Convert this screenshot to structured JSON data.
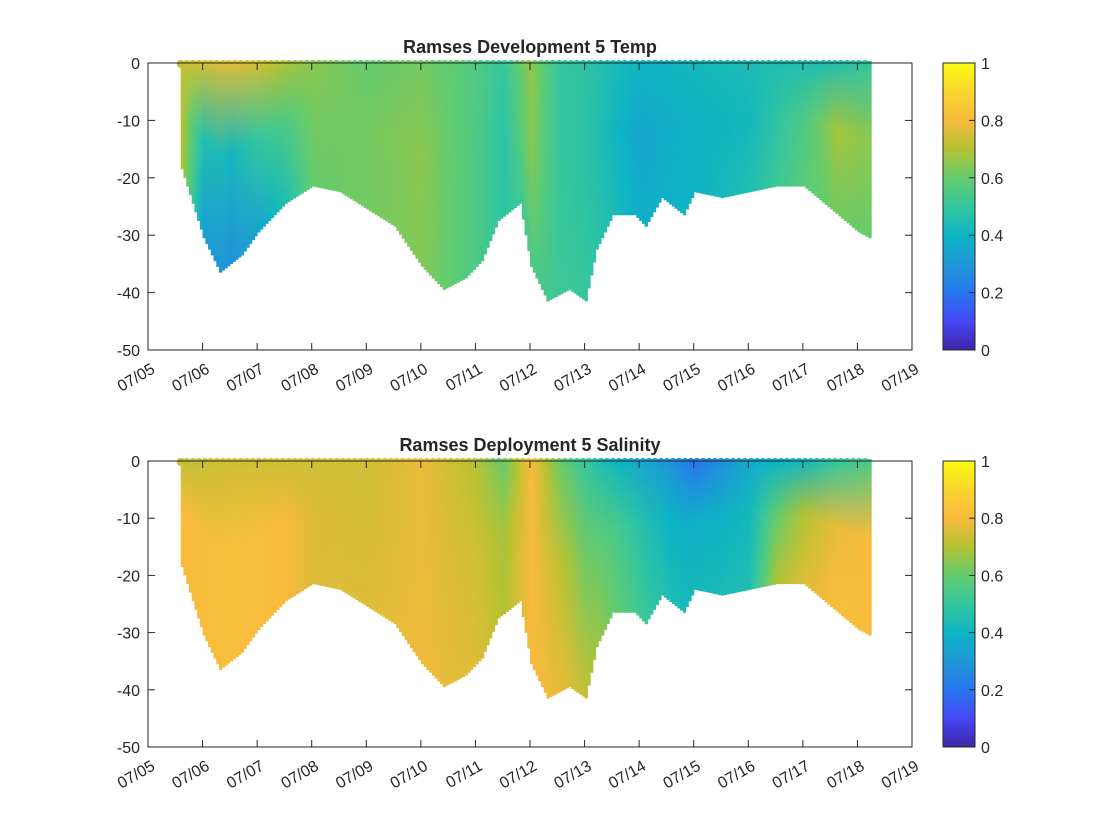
{
  "chart_data": [
    {
      "type": "heatmap",
      "title": "Ramses Development 5 Temp",
      "xlabel": "",
      "ylabel": "",
      "x_tick_labels": [
        "07/05",
        "07/06",
        "07/07",
        "07/08",
        "07/09",
        "07/10",
        "07/11",
        "07/12",
        "07/13",
        "07/14",
        "07/15",
        "07/16",
        "07/17",
        "07/18",
        "07/19"
      ],
      "x_range_days": [
        5,
        19
      ],
      "ylim": [
        -50,
        0
      ],
      "y_ticks": [
        0,
        -10,
        -20,
        -30,
        -40,
        -50
      ],
      "grid": false,
      "colormap": "parula",
      "colorbar": {
        "ticks": [
          0,
          0.2,
          0.4,
          0.6,
          0.8,
          1
        ],
        "range": [
          0,
          1
        ]
      },
      "depth_profile": [
        [
          5.6,
          -18
        ],
        [
          6.0,
          -30
        ],
        [
          6.3,
          -36
        ],
        [
          6.7,
          -33
        ],
        [
          7.0,
          -29
        ],
        [
          7.5,
          -24
        ],
        [
          8.0,
          -21
        ],
        [
          8.5,
          -22
        ],
        [
          9.0,
          -25
        ],
        [
          9.5,
          -28
        ],
        [
          10.0,
          -35
        ],
        [
          10.4,
          -39
        ],
        [
          10.8,
          -37
        ],
        [
          11.1,
          -34
        ],
        [
          11.4,
          -27
        ],
        [
          11.8,
          -24
        ],
        [
          12.0,
          -35
        ],
        [
          12.3,
          -41
        ],
        [
          12.7,
          -39
        ],
        [
          13.0,
          -41
        ],
        [
          13.2,
          -32
        ],
        [
          13.5,
          -26
        ],
        [
          13.9,
          -26
        ],
        [
          14.1,
          -28
        ],
        [
          14.4,
          -23
        ],
        [
          14.8,
          -26
        ],
        [
          15.0,
          -22
        ],
        [
          15.5,
          -23
        ],
        [
          16.0,
          -22
        ],
        [
          16.5,
          -21
        ],
        [
          17.0,
          -21
        ],
        [
          17.5,
          -25
        ],
        [
          18.0,
          -29
        ],
        [
          18.2,
          -30
        ]
      ],
      "values_at_time": [
        {
          "t": 5.6,
          "surface": 0.72,
          "mid": 0.7,
          "deep": 0.7
        },
        {
          "t": 6.0,
          "surface": 0.74,
          "mid": 0.45,
          "deep": 0.32
        },
        {
          "t": 6.5,
          "surface": 0.76,
          "mid": 0.42,
          "deep": 0.28
        },
        {
          "t": 7.0,
          "surface": 0.74,
          "mid": 0.5,
          "deep": 0.35
        },
        {
          "t": 7.5,
          "surface": 0.68,
          "mid": 0.55,
          "deep": 0.45
        },
        {
          "t": 8.0,
          "surface": 0.65,
          "mid": 0.62,
          "deep": 0.6
        },
        {
          "t": 9.0,
          "surface": 0.6,
          "mid": 0.62,
          "deep": 0.62
        },
        {
          "t": 10.0,
          "surface": 0.62,
          "mid": 0.65,
          "deep": 0.64
        },
        {
          "t": 11.0,
          "surface": 0.56,
          "mid": 0.55,
          "deep": 0.55
        },
        {
          "t": 11.5,
          "surface": 0.5,
          "mid": 0.48,
          "deep": 0.48
        },
        {
          "t": 12.0,
          "surface": 0.66,
          "mid": 0.64,
          "deep": 0.55
        },
        {
          "t": 12.5,
          "surface": 0.5,
          "mid": 0.5,
          "deep": 0.52
        },
        {
          "t": 13.0,
          "surface": 0.48,
          "mid": 0.48,
          "deep": 0.5
        },
        {
          "t": 14.0,
          "surface": 0.4,
          "mid": 0.35,
          "deep": 0.38
        },
        {
          "t": 15.0,
          "surface": 0.42,
          "mid": 0.4,
          "deep": 0.4
        },
        {
          "t": 16.0,
          "surface": 0.44,
          "mid": 0.42,
          "deep": 0.45
        },
        {
          "t": 17.0,
          "surface": 0.45,
          "mid": 0.55,
          "deep": 0.58
        },
        {
          "t": 17.6,
          "surface": 0.46,
          "mid": 0.68,
          "deep": 0.62
        },
        {
          "t": 18.2,
          "surface": 0.5,
          "mid": 0.65,
          "deep": 0.6
        }
      ]
    },
    {
      "type": "heatmap",
      "title": "Ramses Deployment 5 Salinity",
      "xlabel": "",
      "ylabel": "",
      "x_tick_labels": [
        "07/05",
        "07/06",
        "07/07",
        "07/08",
        "07/09",
        "07/10",
        "07/11",
        "07/12",
        "07/13",
        "07/14",
        "07/15",
        "07/16",
        "07/17",
        "07/18",
        "07/19"
      ],
      "x_range_days": [
        5,
        19
      ],
      "ylim": [
        -50,
        0
      ],
      "y_ticks": [
        0,
        -10,
        -20,
        -30,
        -40,
        -50
      ],
      "grid": false,
      "colormap": "parula",
      "colorbar": {
        "ticks": [
          0,
          0.2,
          0.4,
          0.6,
          0.8,
          1
        ],
        "range": [
          0,
          1
        ]
      },
      "depth_profile": [
        [
          5.6,
          -18
        ],
        [
          6.0,
          -30
        ],
        [
          6.3,
          -36
        ],
        [
          6.7,
          -33
        ],
        [
          7.0,
          -29
        ],
        [
          7.5,
          -24
        ],
        [
          8.0,
          -21
        ],
        [
          8.5,
          -22
        ],
        [
          9.0,
          -25
        ],
        [
          9.5,
          -28
        ],
        [
          10.0,
          -35
        ],
        [
          10.4,
          -39
        ],
        [
          10.8,
          -37
        ],
        [
          11.1,
          -34
        ],
        [
          11.4,
          -27
        ],
        [
          11.8,
          -24
        ],
        [
          12.0,
          -35
        ],
        [
          12.3,
          -41
        ],
        [
          12.7,
          -39
        ],
        [
          13.0,
          -41
        ],
        [
          13.2,
          -32
        ],
        [
          13.5,
          -26
        ],
        [
          13.9,
          -26
        ],
        [
          14.1,
          -28
        ],
        [
          14.4,
          -23
        ],
        [
          14.8,
          -26
        ],
        [
          15.0,
          -22
        ],
        [
          15.5,
          -23
        ],
        [
          16.0,
          -22
        ],
        [
          16.5,
          -21
        ],
        [
          17.0,
          -21
        ],
        [
          17.5,
          -25
        ],
        [
          18.0,
          -29
        ],
        [
          18.2,
          -30
        ]
      ],
      "values_at_time": [
        {
          "t": 5.6,
          "surface": 0.72,
          "mid": 0.8,
          "deep": 0.8
        },
        {
          "t": 6.5,
          "surface": 0.74,
          "mid": 0.82,
          "deep": 0.82
        },
        {
          "t": 7.5,
          "surface": 0.74,
          "mid": 0.8,
          "deep": 0.8
        },
        {
          "t": 8.0,
          "surface": 0.74,
          "mid": 0.76,
          "deep": 0.76
        },
        {
          "t": 9.0,
          "surface": 0.74,
          "mid": 0.75,
          "deep": 0.76
        },
        {
          "t": 10.0,
          "surface": 0.78,
          "mid": 0.78,
          "deep": 0.79
        },
        {
          "t": 11.0,
          "surface": 0.7,
          "mid": 0.74,
          "deep": 0.76
        },
        {
          "t": 11.5,
          "surface": 0.6,
          "mid": 0.68,
          "deep": 0.7
        },
        {
          "t": 12.0,
          "surface": 0.8,
          "mid": 0.8,
          "deep": 0.8
        },
        {
          "t": 12.5,
          "surface": 0.62,
          "mid": 0.72,
          "deep": 0.78
        },
        {
          "t": 13.0,
          "surface": 0.5,
          "mid": 0.62,
          "deep": 0.72
        },
        {
          "t": 13.5,
          "surface": 0.42,
          "mid": 0.55,
          "deep": 0.6
        },
        {
          "t": 14.5,
          "surface": 0.3,
          "mid": 0.4,
          "deep": 0.45
        },
        {
          "t": 15.0,
          "surface": 0.2,
          "mid": 0.38,
          "deep": 0.42
        },
        {
          "t": 16.0,
          "surface": 0.36,
          "mid": 0.42,
          "deep": 0.45
        },
        {
          "t": 16.5,
          "surface": 0.4,
          "mid": 0.6,
          "deep": 0.7
        },
        {
          "t": 17.0,
          "surface": 0.42,
          "mid": 0.7,
          "deep": 0.76
        },
        {
          "t": 17.6,
          "surface": 0.5,
          "mid": 0.78,
          "deep": 0.82
        },
        {
          "t": 18.2,
          "surface": 0.55,
          "mid": 0.8,
          "deep": 0.8
        }
      ]
    }
  ]
}
